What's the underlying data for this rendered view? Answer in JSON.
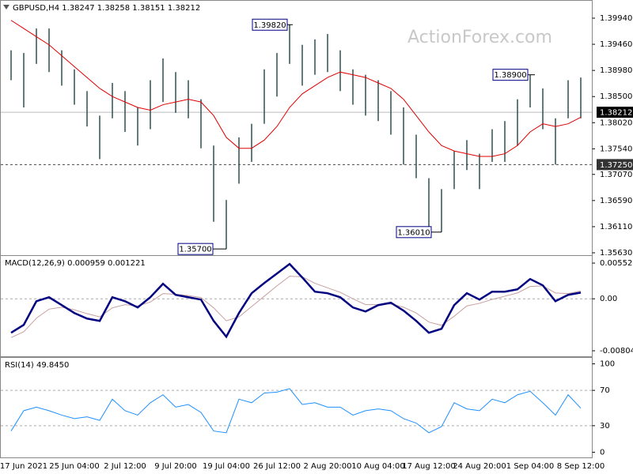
{
  "chart_data": [
    {
      "type": "bar-range",
      "title": "GBPUSD,H4 1.38247 1.38258 1.38151 1.38212",
      "watermark": "ActionForex.com",
      "color": "#2f4f4f",
      "high": [
        1.3935,
        1.393,
        1.3975,
        1.3975,
        1.3935,
        1.39,
        1.386,
        1.3815,
        1.3875,
        1.386,
        1.383,
        1.388,
        1.392,
        1.3895,
        1.388,
        1.3845,
        1.376,
        1.366,
        1.3775,
        1.38,
        1.39,
        1.393,
        1.3982,
        1.3945,
        1.3955,
        1.3965,
        1.3935,
        1.39,
        1.389,
        1.388,
        1.386,
        1.383,
        1.378,
        1.37,
        1.368,
        1.375,
        1.377,
        1.3745,
        1.379,
        1.3805,
        1.3845,
        1.389,
        1.3865,
        1.381,
        1.388,
        1.3885
      ],
      "low": [
        1.388,
        1.383,
        1.391,
        1.3895,
        1.387,
        1.3835,
        1.3795,
        1.3735,
        1.381,
        1.3785,
        1.376,
        1.379,
        1.384,
        1.382,
        1.381,
        1.3755,
        1.362,
        1.357,
        1.369,
        1.373,
        1.38,
        1.385,
        1.391,
        1.387,
        1.389,
        1.3895,
        1.386,
        1.3835,
        1.3815,
        1.3805,
        1.378,
        1.3725,
        1.37,
        1.361,
        1.3601,
        1.368,
        1.3715,
        1.368,
        1.373,
        1.373,
        1.376,
        1.383,
        1.379,
        1.3725,
        1.381,
        1.381
      ],
      "ma_color": "#e00000",
      "ma_values": [
        1.399,
        1.3975,
        1.396,
        1.3945,
        1.3925,
        1.3905,
        1.3885,
        1.3865,
        1.385,
        1.384,
        1.383,
        1.3825,
        1.3835,
        1.384,
        1.3845,
        1.384,
        1.3815,
        1.3775,
        1.3755,
        1.3755,
        1.377,
        1.3795,
        1.383,
        1.3855,
        1.387,
        1.3885,
        1.3895,
        1.389,
        1.3885,
        1.3875,
        1.3865,
        1.3845,
        1.3815,
        1.3785,
        1.376,
        1.375,
        1.3745,
        1.374,
        1.374,
        1.3745,
        1.376,
        1.3785,
        1.38,
        1.3795,
        1.38,
        1.3812
      ],
      "ylim": [
        1.35601,
        1.4023
      ],
      "yticks": [
        {
          "value": 1.3994,
          "label": "1.39940"
        },
        {
          "value": 1.3946,
          "label": "1.39460"
        },
        {
          "value": 1.3898,
          "label": "1.38980"
        },
        {
          "value": 1.385,
          "label": "1.38500"
        },
        {
          "value": 1.3802,
          "label": "1.38020"
        },
        {
          "value": 1.3754,
          "label": "1.37540"
        },
        {
          "value": 1.3707,
          "label": "1.37070"
        },
        {
          "value": 1.3659,
          "label": "1.36590"
        },
        {
          "value": 1.3611,
          "label": "1.36110"
        },
        {
          "value": 1.3563,
          "label": "1.35630"
        }
      ],
      "last_price": {
        "value": 1.38212,
        "label": "1.38212"
      },
      "hline": {
        "value": 1.3725,
        "label": "1.37250"
      },
      "annotations": [
        {
          "value": 1.3982,
          "label": "1.39820"
        },
        {
          "value": 1.389,
          "label": "1.38900"
        },
        {
          "value": 1.3601,
          "label": "1.36010"
        },
        {
          "value": 1.357,
          "label": "1.35700"
        }
      ]
    },
    {
      "type": "line",
      "title": "MACD(12,26,9) 0.000959 0.001221",
      "series": [
        {
          "color": "#000080",
          "values": [
            -0.00525,
            -0.00403,
            -0.00037,
            0.00024,
            -0.00098,
            -0.0022,
            -0.00306,
            -0.00342,
            0.00024,
            -0.00037,
            -0.00134,
            0.00024,
            0.00232,
            0.00061,
            0.00024,
            -0.00012,
            -0.00342,
            -0.00587,
            -0.0022,
            0.00086,
            0.00244,
            0.00391,
            0.00538,
            0.0033,
            0.0011,
            0.00086,
            0.00024,
            -0.00134,
            -0.00196,
            -0.00098,
            -0.00061,
            -0.00183,
            -0.00342,
            -0.00525,
            -0.00464,
            -0.00098,
            0.00086,
            -0.00012,
            0.0011,
            0.0011,
            0.00147,
            0.00306,
            0.00208,
            -0.00037,
            0.00061,
            0.000959
          ]
        },
        {
          "color": "#c8a0a0",
          "values": [
            -0.006,
            -0.0051,
            -0.003,
            -0.0016,
            -0.0013,
            -0.0017,
            -0.0023,
            -0.0028,
            -0.0014,
            -0.0009,
            -0.0011,
            -0.0005,
            0.0008,
            0.0007,
            0.0005,
            0.0002,
            -0.0014,
            -0.0034,
            -0.0028,
            -0.0012,
            0.0004,
            0.002,
            0.0035,
            0.0034,
            0.0024,
            0.0017,
            0.001,
            0,
            -0.0009,
            -0.0009,
            -0.0008,
            -0.0013,
            -0.0022,
            -0.0036,
            -0.0041,
            -0.0027,
            -0.0011,
            -0.0007,
            -0.0001,
            0.0004,
            0.0009,
            0.0019,
            0.002,
            0.0009,
            0.0008,
            0.001221
          ]
        }
      ],
      "ylim": [
        -0.00877,
        0.00638
      ],
      "yticks": [
        {
          "value": 0.00552,
          "label": "0.00552"
        },
        {
          "value": 0,
          "label": "0.00"
        },
        {
          "value": -0.00804,
          "label": "-0.00804"
        }
      ],
      "levels": [
        0
      ]
    },
    {
      "type": "line",
      "title": "RSI(14) 49.8450",
      "series": [
        {
          "color": "#1e90ff",
          "values": [
            24,
            47,
            51,
            47,
            42,
            38,
            40,
            36,
            60,
            47,
            42,
            56,
            65,
            51,
            54,
            45,
            24,
            22,
            60,
            56,
            67,
            68,
            72,
            54,
            56,
            51,
            51,
            42,
            47,
            49,
            47,
            38,
            33,
            22,
            29,
            56,
            49,
            47,
            60,
            56,
            65,
            69,
            56,
            42,
            65,
            49.845
          ]
        }
      ],
      "ylim": [
        -5,
        105
      ],
      "yticks": [
        100,
        70,
        30,
        0
      ],
      "levels": [
        70,
        30
      ],
      "categories": [
        null,
        "17 Jun 2021",
        null,
        null,
        null,
        "25 Jun 04:00",
        null,
        null,
        null,
        "2 Jul 12:00",
        null,
        null,
        null,
        "9 Jul 20:00",
        null,
        null,
        null,
        "19 Jul 04:00",
        null,
        null,
        null,
        "26 Jul 12:00",
        null,
        null,
        null,
        "2 Aug 20:00",
        null,
        null,
        null,
        "10 Aug 04:00",
        null,
        null,
        null,
        "17 Aug 12:00",
        null,
        null,
        null,
        "24 Aug 20:00",
        null,
        null,
        null,
        "1 Sep 04:00",
        null,
        null,
        null,
        "8 Sep 12:00"
      ]
    }
  ]
}
